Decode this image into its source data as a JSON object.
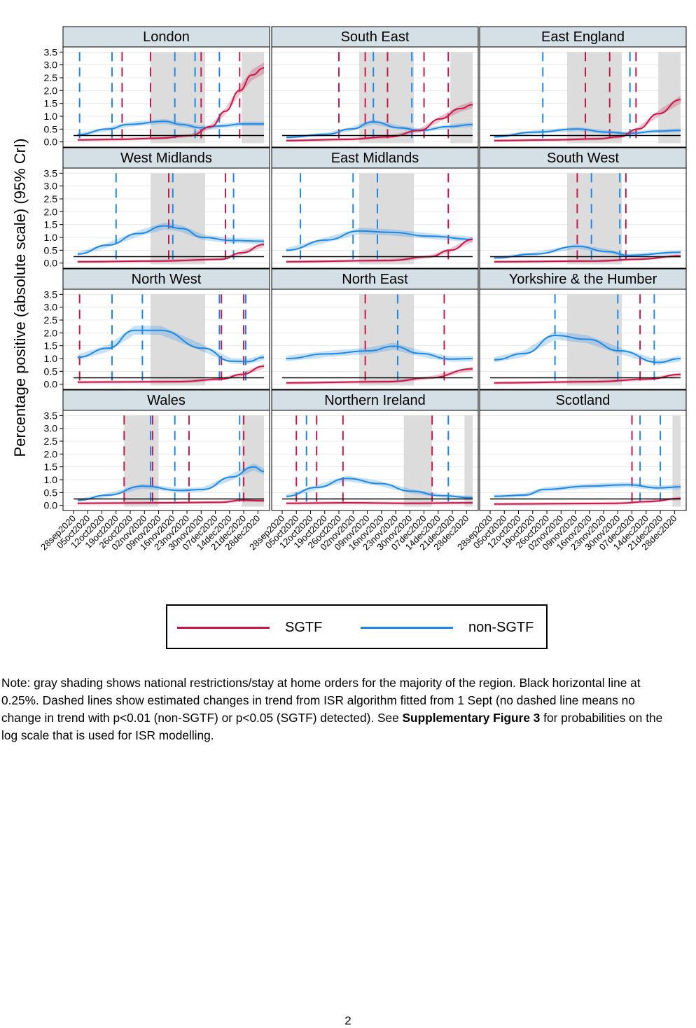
{
  "chart_data": {
    "type": "line",
    "ylabel": "Percentage positive (absolute scale) (95% CrI)",
    "yticks": [
      "0.0",
      "0.5",
      "1.0",
      "1.5",
      "2.0",
      "2.5",
      "3.0",
      "3.5"
    ],
    "ylim": [
      -0.2,
      3.7
    ],
    "xlim": [
      "2020-09-28",
      "2020-12-31"
    ],
    "xticks": [
      "28sep2020",
      "05oct2020",
      "12oct2020",
      "19oct2020",
      "26oct2020",
      "02nov2020",
      "09nov2020",
      "16nov2020",
      "23nov2020",
      "30nov2020",
      "07dec2020",
      "14dec2020",
      "21dec2020",
      "28dec2020"
    ],
    "reference_line": 0.25,
    "grid": true,
    "colors": {
      "SGTF": "#c8184a",
      "non-SGTF": "#1e88e5",
      "shade": "#dcdcdc",
      "strip": "#d5e0e6"
    },
    "legend": {
      "position": "bottom",
      "entries": [
        "SGTF",
        "non-SGTF"
      ]
    },
    "panels": [
      {
        "title": "London",
        "shading": [
          [
            "2020-11-05",
            "2020-12-02"
          ],
          [
            "2020-12-20",
            "2020-12-31"
          ]
        ],
        "breaks_sgtf": [
          "2020-10-22",
          "2020-11-05",
          "2020-11-30",
          "2020-12-19"
        ],
        "breaks_nonsgtf": [
          "2020-10-01",
          "2020-10-17",
          "2020-11-17",
          "2020-11-27",
          "2020-12-09"
        ],
        "sgtf": [
          [
            "2020-09-30",
            0.08
          ],
          [
            "2020-10-20",
            0.1
          ],
          [
            "2020-11-10",
            0.15
          ],
          [
            "2020-11-25",
            0.25
          ],
          [
            "2020-12-05",
            0.6
          ],
          [
            "2020-12-12",
            1.2
          ],
          [
            "2020-12-19",
            2.0
          ],
          [
            "2020-12-25",
            2.6
          ],
          [
            "2020-12-31",
            2.88
          ]
        ],
        "nonsgtf": [
          [
            "2020-09-30",
            0.28
          ],
          [
            "2020-10-15",
            0.5
          ],
          [
            "2020-10-25",
            0.68
          ],
          [
            "2020-11-12",
            0.8
          ],
          [
            "2020-11-20",
            0.68
          ],
          [
            "2020-11-30",
            0.55
          ],
          [
            "2020-12-10",
            0.62
          ],
          [
            "2020-12-20",
            0.7
          ],
          [
            "2020-12-31",
            0.7
          ]
        ]
      },
      {
        "title": "South East",
        "shading": [
          [
            "2020-11-05",
            "2020-12-02"
          ],
          [
            "2020-12-20",
            "2020-12-31"
          ]
        ],
        "breaks_sgtf": [
          "2020-10-26",
          "2020-11-08",
          "2020-11-19",
          "2020-12-07",
          "2020-12-19"
        ],
        "breaks_nonsgtf": [
          "2020-11-12",
          "2020-12-01"
        ],
        "sgtf": [
          [
            "2020-09-30",
            0.05
          ],
          [
            "2020-10-30",
            0.1
          ],
          [
            "2020-11-20",
            0.2
          ],
          [
            "2020-12-05",
            0.45
          ],
          [
            "2020-12-15",
            0.9
          ],
          [
            "2020-12-25",
            1.3
          ],
          [
            "2020-12-31",
            1.45
          ]
        ],
        "nonsgtf": [
          [
            "2020-09-30",
            0.18
          ],
          [
            "2020-10-20",
            0.3
          ],
          [
            "2020-11-01",
            0.5
          ],
          [
            "2020-11-12",
            0.78
          ],
          [
            "2020-11-25",
            0.55
          ],
          [
            "2020-12-05",
            0.45
          ],
          [
            "2020-12-20",
            0.6
          ],
          [
            "2020-12-31",
            0.68
          ]
        ]
      },
      {
        "title": "East England",
        "shading": [
          [
            "2020-11-05",
            "2020-12-02"
          ],
          [
            "2020-12-20",
            "2020-12-31"
          ]
        ],
        "breaks_sgtf": [
          "2020-11-14",
          "2020-11-26",
          "2020-12-09"
        ],
        "breaks_nonsgtf": [
          "2020-10-24",
          "2020-12-06"
        ],
        "sgtf": [
          [
            "2020-09-30",
            0.05
          ],
          [
            "2020-10-30",
            0.08
          ],
          [
            "2020-11-20",
            0.12
          ],
          [
            "2020-12-01",
            0.2
          ],
          [
            "2020-12-10",
            0.5
          ],
          [
            "2020-12-20",
            1.1
          ],
          [
            "2020-12-31",
            1.65
          ]
        ],
        "nonsgtf": [
          [
            "2020-09-30",
            0.2
          ],
          [
            "2020-10-20",
            0.38
          ],
          [
            "2020-11-10",
            0.5
          ],
          [
            "2020-11-25",
            0.38
          ],
          [
            "2020-12-05",
            0.33
          ],
          [
            "2020-12-20",
            0.42
          ],
          [
            "2020-12-31",
            0.45
          ]
        ]
      },
      {
        "title": "West Midlands",
        "shading": [
          [
            "2020-11-05",
            "2020-12-02"
          ]
        ],
        "breaks_sgtf": [
          "2020-11-14",
          "2020-12-12"
        ],
        "breaks_nonsgtf": [
          "2020-10-19",
          "2020-11-16",
          "2020-12-16"
        ],
        "sgtf": [
          [
            "2020-09-30",
            0.05
          ],
          [
            "2020-11-10",
            0.08
          ],
          [
            "2020-12-10",
            0.15
          ],
          [
            "2020-12-20",
            0.4
          ],
          [
            "2020-12-31",
            0.72
          ]
        ],
        "nonsgtf": [
          [
            "2020-09-30",
            0.35
          ],
          [
            "2020-10-15",
            0.7
          ],
          [
            "2020-10-30",
            1.15
          ],
          [
            "2020-11-12",
            1.45
          ],
          [
            "2020-11-20",
            1.35
          ],
          [
            "2020-12-01",
            1.0
          ],
          [
            "2020-12-15",
            0.88
          ],
          [
            "2020-12-31",
            0.85
          ]
        ]
      },
      {
        "title": "East Midlands",
        "shading": [
          [
            "2020-11-05",
            "2020-12-02"
          ]
        ],
        "breaks_sgtf": [
          "2020-12-19"
        ],
        "breaks_nonsgtf": [
          "2020-10-07",
          "2020-11-02",
          "2020-11-14"
        ],
        "sgtf": [
          [
            "2020-09-30",
            0.05
          ],
          [
            "2020-11-20",
            0.1
          ],
          [
            "2020-12-10",
            0.25
          ],
          [
            "2020-12-20",
            0.5
          ],
          [
            "2020-12-31",
            0.92
          ]
        ],
        "nonsgtf": [
          [
            "2020-09-30",
            0.5
          ],
          [
            "2020-10-20",
            0.9
          ],
          [
            "2020-11-05",
            1.25
          ],
          [
            "2020-11-20",
            1.2
          ],
          [
            "2020-12-10",
            1.05
          ],
          [
            "2020-12-31",
            0.92
          ]
        ]
      },
      {
        "title": "South West",
        "shading": [
          [
            "2020-11-05",
            "2020-12-02"
          ]
        ],
        "breaks_sgtf": [
          "2020-11-10",
          "2020-12-04"
        ],
        "breaks_nonsgtf": [
          "2020-11-17",
          "2020-12-01"
        ],
        "sgtf": [
          [
            "2020-09-30",
            0.05
          ],
          [
            "2020-11-20",
            0.08
          ],
          [
            "2020-12-10",
            0.15
          ],
          [
            "2020-12-31",
            0.28
          ]
        ],
        "nonsgtf": [
          [
            "2020-09-30",
            0.2
          ],
          [
            "2020-10-20",
            0.35
          ],
          [
            "2020-11-10",
            0.65
          ],
          [
            "2020-11-25",
            0.45
          ],
          [
            "2020-12-05",
            0.3
          ],
          [
            "2020-12-31",
            0.42
          ]
        ]
      },
      {
        "title": "North West",
        "shading": [
          [
            "2020-11-05",
            "2020-12-02"
          ]
        ],
        "breaks_sgtf": [
          "2020-10-01",
          "2020-12-10",
          "2020-12-21"
        ],
        "breaks_nonsgtf": [
          "2020-10-17",
          "2020-11-01",
          "2020-12-09",
          "2020-12-22"
        ],
        "sgtf": [
          [
            "2020-09-30",
            0.08
          ],
          [
            "2020-11-20",
            0.1
          ],
          [
            "2020-12-10",
            0.2
          ],
          [
            "2020-12-20",
            0.38
          ],
          [
            "2020-12-31",
            0.7
          ]
        ],
        "nonsgtf": [
          [
            "2020-09-30",
            1.05
          ],
          [
            "2020-10-15",
            1.4
          ],
          [
            "2020-10-28",
            2.1
          ],
          [
            "2020-11-10",
            2.1
          ],
          [
            "2020-12-01",
            1.4
          ],
          [
            "2020-12-15",
            0.9
          ],
          [
            "2020-12-23",
            0.88
          ],
          [
            "2020-12-31",
            1.05
          ]
        ]
      },
      {
        "title": "North East",
        "shading": [
          [
            "2020-11-05",
            "2020-12-02"
          ]
        ],
        "breaks_sgtf": [
          "2020-11-08",
          "2020-12-17"
        ],
        "breaks_nonsgtf": [
          "2020-11-24"
        ],
        "sgtf": [
          [
            "2020-09-30",
            0.05
          ],
          [
            "2020-11-20",
            0.1
          ],
          [
            "2020-12-10",
            0.25
          ],
          [
            "2020-12-31",
            0.6
          ]
        ],
        "nonsgtf": [
          [
            "2020-09-30",
            1.0
          ],
          [
            "2020-10-20",
            1.18
          ],
          [
            "2020-11-10",
            1.3
          ],
          [
            "2020-11-22",
            1.48
          ],
          [
            "2020-12-05",
            1.2
          ],
          [
            "2020-12-20",
            0.98
          ],
          [
            "2020-12-31",
            1.0
          ]
        ]
      },
      {
        "title": "Yorkshire & the Humber",
        "shading": [
          [
            "2020-11-05",
            "2020-12-02"
          ]
        ],
        "breaks_sgtf": [
          "2020-12-11"
        ],
        "breaks_nonsgtf": [
          "2020-10-30",
          "2020-11-30",
          "2020-12-18"
        ],
        "sgtf": [
          [
            "2020-09-30",
            0.05
          ],
          [
            "2020-11-20",
            0.1
          ],
          [
            "2020-12-15",
            0.2
          ],
          [
            "2020-12-31",
            0.38
          ]
        ],
        "nonsgtf": [
          [
            "2020-09-30",
            0.95
          ],
          [
            "2020-10-15",
            1.2
          ],
          [
            "2020-10-30",
            1.9
          ],
          [
            "2020-11-15",
            1.75
          ],
          [
            "2020-12-01",
            1.3
          ],
          [
            "2020-12-20",
            0.85
          ],
          [
            "2020-12-31",
            1.0
          ]
        ]
      },
      {
        "title": "Wales",
        "shading": [
          [
            "2020-10-23",
            "2020-11-09"
          ],
          [
            "2020-12-20",
            "2020-12-31"
          ]
        ],
        "breaks_sgtf": [
          "2020-10-23",
          "2020-11-06",
          "2020-11-24",
          "2020-12-21"
        ],
        "breaks_nonsgtf": [
          "2020-11-05",
          "2020-11-17",
          "2020-12-19"
        ],
        "sgtf": [
          [
            "2020-09-30",
            0.08
          ],
          [
            "2020-11-10",
            0.1
          ],
          [
            "2020-12-10",
            0.12
          ],
          [
            "2020-12-20",
            0.2
          ],
          [
            "2020-12-31",
            0.18
          ]
        ],
        "nonsgtf": [
          [
            "2020-09-30",
            0.2
          ],
          [
            "2020-10-15",
            0.4
          ],
          [
            "2020-11-01",
            0.75
          ],
          [
            "2020-11-20",
            0.58
          ],
          [
            "2020-12-01",
            0.62
          ],
          [
            "2020-12-15",
            1.1
          ],
          [
            "2020-12-26",
            1.5
          ],
          [
            "2020-12-31",
            1.32
          ]
        ]
      },
      {
        "title": "Northern Ireland",
        "shading": [
          [
            "2020-11-27",
            "2020-12-11"
          ],
          [
            "2020-12-27",
            "2020-12-31"
          ]
        ],
        "breaks_sgtf": [
          "2020-10-05",
          "2020-10-15",
          "2020-10-28",
          "2020-12-11"
        ],
        "breaks_nonsgtf": [
          "2020-10-10",
          "2020-12-19"
        ],
        "sgtf": [
          [
            "2020-09-30",
            0.08
          ],
          [
            "2020-10-30",
            0.1
          ],
          [
            "2020-11-30",
            0.08
          ],
          [
            "2020-12-31",
            0.1
          ]
        ],
        "nonsgtf": [
          [
            "2020-09-30",
            0.35
          ],
          [
            "2020-10-15",
            0.7
          ],
          [
            "2020-10-30",
            1.05
          ],
          [
            "2020-11-15",
            0.85
          ],
          [
            "2020-12-01",
            0.55
          ],
          [
            "2020-12-15",
            0.38
          ],
          [
            "2020-12-31",
            0.3
          ]
        ]
      },
      {
        "title": "Scotland",
        "shading": [
          [
            "2020-12-27",
            "2020-12-31"
          ]
        ],
        "breaks_sgtf": [
          "2020-12-07"
        ],
        "breaks_nonsgtf": [
          "2020-12-11",
          "2020-12-21"
        ],
        "sgtf": [
          [
            "2020-09-30",
            0.05
          ],
          [
            "2020-11-30",
            0.08
          ],
          [
            "2020-12-15",
            0.15
          ],
          [
            "2020-12-31",
            0.27
          ]
        ],
        "nonsgtf": [
          [
            "2020-09-30",
            0.35
          ],
          [
            "2020-10-15",
            0.4
          ],
          [
            "2020-10-25",
            0.62
          ],
          [
            "2020-11-15",
            0.75
          ],
          [
            "2020-12-05",
            0.8
          ],
          [
            "2020-12-20",
            0.68
          ],
          [
            "2020-12-31",
            0.72
          ]
        ]
      }
    ]
  },
  "legend": {
    "sgtf_label": "SGTF",
    "nonsgtf_label": "non-SGTF"
  },
  "note": {
    "text_before": "Note: gray shading shows national restrictions/stay at home orders for the majority of the region. Black horizontal line at 0.25%. Dashed lines show estimated changes in trend from ISR algorithm fitted from 1 Sept (no dashed line means no change in trend with p<0.01 (non-SGTF) or p<0.05 (SGTF) detected). See ",
    "bold": "Supplementary Figure 3",
    "text_after": " for probabilities on the log scale that is used for ISR modelling."
  },
  "page_number": "2"
}
